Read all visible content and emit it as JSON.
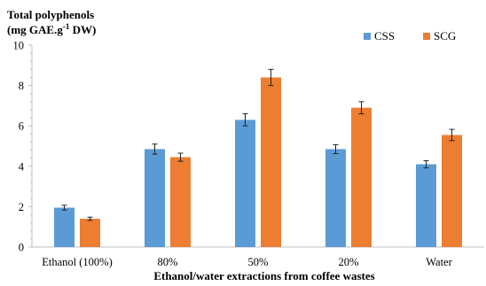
{
  "chart_data": {
    "type": "bar",
    "ylabel_line1": "Total polyphenols",
    "ylabel_line2_prefix": "(mg GAE.g",
    "ylabel_line2_sup": "-1",
    "ylabel_line2_suffix": " DW)",
    "xlabel": "Ethanol/water extractions from coffee wastes",
    "categories": [
      "Ethanol (100%)",
      "80%",
      "50%",
      "20%",
      "Water"
    ],
    "ylim": [
      0,
      10
    ],
    "yticks": [
      0,
      2,
      4,
      6,
      8,
      10
    ],
    "grid": false,
    "legend_position": "top-right",
    "series": [
      {
        "name": "CSS",
        "color": "#5b9bd5",
        "values": [
          1.95,
          4.85,
          6.3,
          4.85,
          4.1
        ],
        "errors": [
          0.12,
          0.25,
          0.3,
          0.22,
          0.18
        ]
      },
      {
        "name": "SCG",
        "color": "#ed7d31",
        "values": [
          1.4,
          4.45,
          8.4,
          6.9,
          5.55
        ],
        "errors": [
          0.08,
          0.2,
          0.4,
          0.3,
          0.28
        ]
      }
    ]
  }
}
